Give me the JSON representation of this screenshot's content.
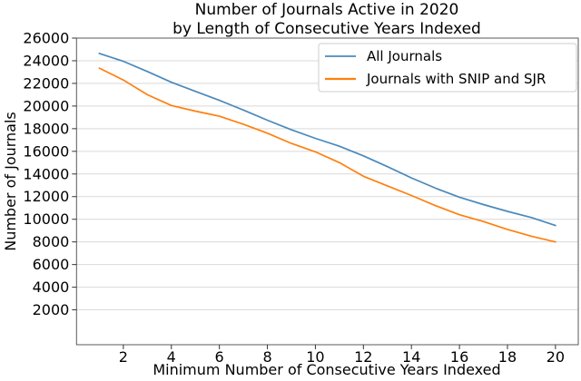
{
  "figure": {
    "title_line1": "Number of Journals Active in 2020",
    "title_line2": "by Length of Consecutive Years Indexed",
    "xlabel": "Minimum Number of Consecutive Years Indexed",
    "ylabel": "Number of Journals"
  },
  "chart_data": {
    "type": "line",
    "title": "Number of Journals Active in 2020 by Length of Consecutive Years Indexed",
    "xlabel": "Minimum Number of Consecutive Years Indexed",
    "ylabel": "Number of Journals",
    "x": [
      1,
      2,
      3,
      4,
      5,
      6,
      7,
      8,
      9,
      10,
      11,
      12,
      13,
      14,
      15,
      16,
      17,
      18,
      19,
      20
    ],
    "series": [
      {
        "name": "All Journals",
        "color": "#4a89bc",
        "values": [
          24650,
          23950,
          23050,
          22100,
          21300,
          20500,
          19650,
          18750,
          17900,
          17150,
          16450,
          15600,
          14650,
          13650,
          12750,
          11950,
          11300,
          10700,
          10150,
          9450
        ]
      },
      {
        "name": "Journals with SNIP and SJR",
        "color": "#ff7f0e",
        "values": [
          23350,
          22300,
          21000,
          20050,
          19550,
          19100,
          18400,
          17600,
          16700,
          15950,
          15000,
          13800,
          12950,
          12100,
          11200,
          10400,
          9800,
          9100,
          8500,
          8000
        ]
      }
    ],
    "xticks": [
      2,
      4,
      6,
      8,
      10,
      12,
      14,
      16,
      18,
      20
    ],
    "yticks": [
      2000,
      4000,
      6000,
      8000,
      10000,
      12000,
      14000,
      16000,
      18000,
      20000,
      22000,
      24000,
      26000
    ],
    "xlim": [
      0.05,
      20.95
    ],
    "ylim": [
      -1080,
      26000
    ],
    "grid": "horizontal",
    "gridline_color": "#d9d9d9",
    "spine_color": "#5a5a5a",
    "tick_color": "#333333",
    "legend_position": "upper right"
  }
}
